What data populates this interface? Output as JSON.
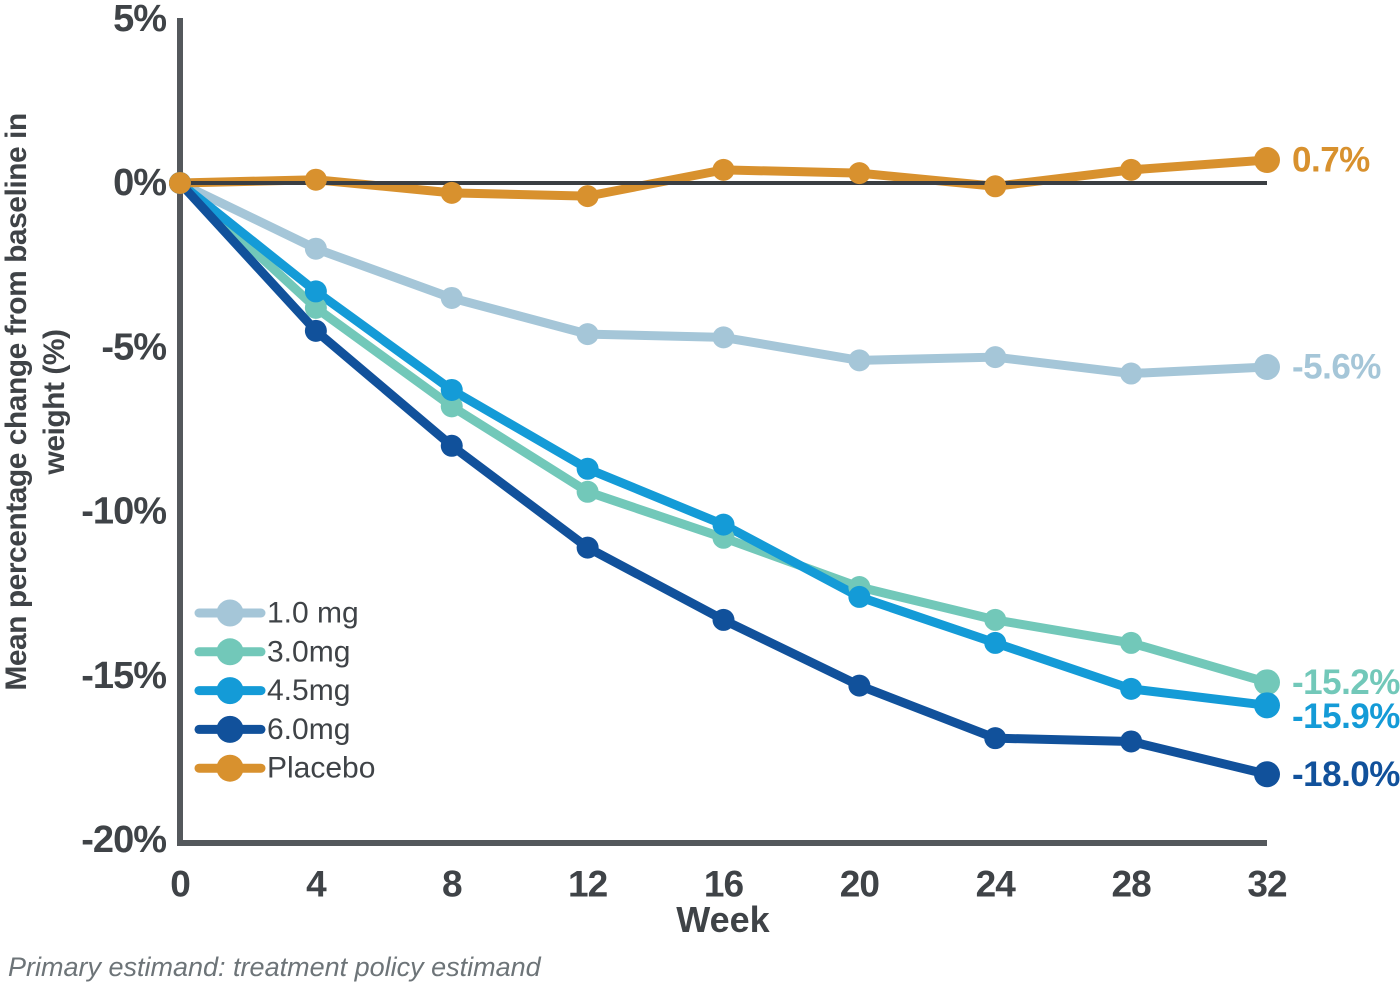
{
  "chart_data": {
    "type": "line",
    "xlabel": "Week",
    "ylabel": "Mean percentage change from baseline in weight (%)",
    "ylabel_lines": [
      "Mean percentage change from baseline in",
      "weight (%)"
    ],
    "x": [
      0,
      4,
      8,
      12,
      16,
      20,
      24,
      28,
      32
    ],
    "xtick_labels": [
      "0",
      "4",
      "8",
      "12",
      "16",
      "20",
      "24",
      "28",
      "32"
    ],
    "xlim": [
      0,
      32
    ],
    "ylim": [
      -20,
      5
    ],
    "yticks": [
      5,
      0,
      -5,
      -10,
      -15,
      -20
    ],
    "ytick_labels": [
      "5%",
      "0%",
      "-5%",
      "-10%",
      "-15%",
      "-20%"
    ],
    "grid": false,
    "zero_line": true,
    "legend_position": "inside-left-middle",
    "series": [
      {
        "name": "1.0 mg",
        "color": "#a5c6d8",
        "end_label": "-5.6%",
        "values": [
          0.0,
          -2.0,
          -3.5,
          -4.6,
          -4.7,
          -5.4,
          -5.3,
          -5.8,
          -5.6
        ]
      },
      {
        "name": "3.0mg",
        "color": "#72c8b9",
        "end_label": "-15.2%",
        "values": [
          0.0,
          -3.8,
          -6.8,
          -9.4,
          -10.8,
          -12.3,
          -13.3,
          -14.0,
          -15.2
        ]
      },
      {
        "name": "4.5mg",
        "color": "#149bd7",
        "end_label": "-15.9%",
        "values": [
          0.0,
          -3.3,
          -6.3,
          -8.7,
          -10.4,
          -12.6,
          -14.0,
          -15.4,
          -15.9
        ]
      },
      {
        "name": "6.0mg",
        "color": "#11519b",
        "end_label": "-18.0%",
        "values": [
          0.0,
          -4.5,
          -8.0,
          -11.1,
          -13.3,
          -15.3,
          -16.9,
          -17.0,
          -18.0
        ]
      },
      {
        "name": "Placebo",
        "color": "#d8912e",
        "end_label": "0.7%",
        "values": [
          0.0,
          0.1,
          -0.3,
          -0.4,
          0.4,
          0.3,
          -0.1,
          0.4,
          0.7
        ]
      }
    ],
    "footnote": "Primary estimand: treatment policy estimand",
    "colors": {
      "axis": "#54585c",
      "zero_line": "#3a3e42",
      "text": "#3f4347",
      "footnote_text": "#6d7478"
    }
  }
}
